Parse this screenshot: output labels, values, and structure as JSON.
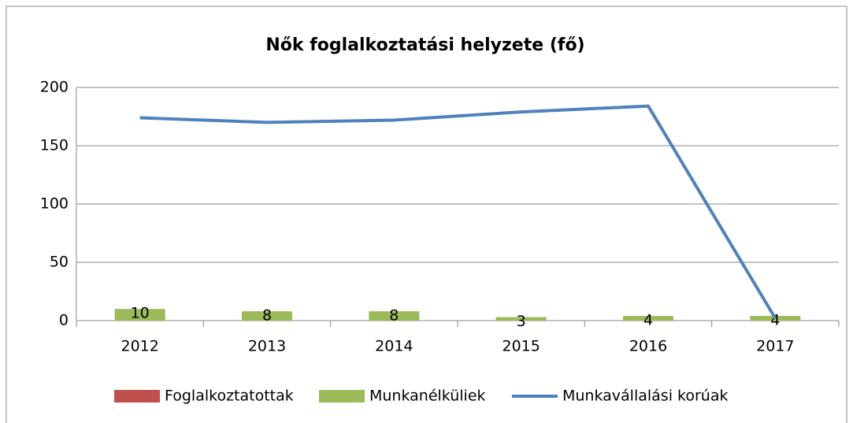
{
  "chart_data": {
    "type": "bar-line",
    "title": "Nők foglalkoztatási helyzete (fő)",
    "categories": [
      "2012",
      "2013",
      "2014",
      "2015",
      "2016",
      "2017"
    ],
    "series": [
      {
        "name": "Foglalkoztatottak",
        "color": "#c0504d",
        "kind": "bar",
        "values": [
          null,
          null,
          null,
          null,
          null,
          null
        ]
      },
      {
        "name": "Munkanélküliek",
        "color": "#9bbb59",
        "kind": "bar",
        "values": [
          10,
          8,
          8,
          3,
          4,
          4
        ]
      },
      {
        "name": "Munkavállalási korúak",
        "color": "#4f81bd",
        "kind": "line",
        "values": [
          174,
          170,
          172,
          179,
          184,
          2
        ]
      }
    ],
    "ylim": [
      0,
      200
    ],
    "yticks": [
      0,
      50,
      100,
      150,
      200
    ],
    "grid": true,
    "legend": "bottom"
  }
}
